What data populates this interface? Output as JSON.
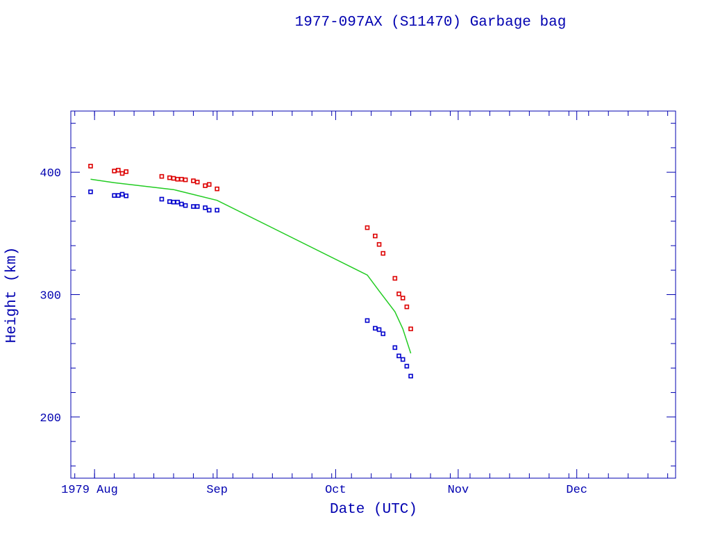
{
  "chart_data": {
    "type": "scatter",
    "title": "1977-097AX (S11470) Garbage bag",
    "xlabel": "Date (UTC)",
    "ylabel": "Height (km)",
    "xlim": [
      "1979-07-26",
      "1979-12-26"
    ],
    "ylim": [
      150,
      450
    ],
    "x_tick_labels": [
      {
        "date": "1979-08-01",
        "label": "1979 Aug"
      },
      {
        "date": "1979-09-01",
        "label": "Sep"
      },
      {
        "date": "1979-10-01",
        "label": "Oct"
      },
      {
        "date": "1979-11-01",
        "label": "Nov"
      },
      {
        "date": "1979-12-01",
        "label": "Dec"
      }
    ],
    "y_ticks": [
      200,
      300,
      400
    ],
    "grid": false,
    "colors": {
      "apogee": "#dd0000",
      "perigee": "#0000cc",
      "mean": "#22cc22",
      "axes": "#0000b0"
    },
    "series": [
      {
        "type": "scatter",
        "color": "#dd0000",
        "x": [
          "1979-07-31",
          "1979-08-06",
          "1979-08-07",
          "1979-08-08",
          "1979-08-09",
          "1979-08-18",
          "1979-08-20",
          "1979-08-21",
          "1979-08-22",
          "1979-08-23",
          "1979-08-24",
          "1979-08-26",
          "1979-08-27",
          "1979-08-29",
          "1979-08-30",
          "1979-09-01",
          "1979-10-09",
          "1979-10-11",
          "1979-10-12",
          "1979-10-13",
          "1979-10-16",
          "1979-10-17",
          "1979-10-18",
          "1979-10-19",
          "1979-10-20"
        ],
        "y": [
          405,
          401,
          401.7,
          399,
          400.5,
          396.6,
          395.5,
          395,
          394.3,
          394.3,
          393.8,
          393,
          392,
          389,
          390,
          386.4,
          354.7,
          347.9,
          341,
          333.7,
          313.3,
          300.6,
          297.2,
          290,
          272
        ]
      },
      {
        "type": "scatter",
        "color": "#0000cc",
        "x": [
          "1979-07-31",
          "1979-08-06",
          "1979-08-07",
          "1979-08-08",
          "1979-08-09",
          "1979-08-18",
          "1979-08-20",
          "1979-08-21",
          "1979-08-22",
          "1979-08-23",
          "1979-08-24",
          "1979-08-26",
          "1979-08-27",
          "1979-08-29",
          "1979-08-30",
          "1979-09-01",
          "1979-10-09",
          "1979-10-11",
          "1979-10-12",
          "1979-10-13",
          "1979-10-16",
          "1979-10-17",
          "1979-10-18",
          "1979-10-19",
          "1979-10-20"
        ],
        "y": [
          384,
          381,
          381,
          382,
          380.7,
          378,
          376,
          375.6,
          375.6,
          374,
          372.8,
          372,
          372,
          371,
          369,
          369,
          278.8,
          272.5,
          271.4,
          268,
          256.7,
          249.9,
          247,
          241.5,
          233.4
        ]
      },
      {
        "type": "line",
        "color": "#22cc22",
        "x": [
          "1979-07-31",
          "1979-08-06",
          "1979-08-21",
          "1979-09-01",
          "1979-10-09",
          "1979-10-12",
          "1979-10-16",
          "1979-10-18",
          "1979-10-20"
        ],
        "y": [
          394.3,
          391.5,
          385.8,
          377,
          316,
          303,
          286,
          272,
          252
        ]
      }
    ]
  }
}
